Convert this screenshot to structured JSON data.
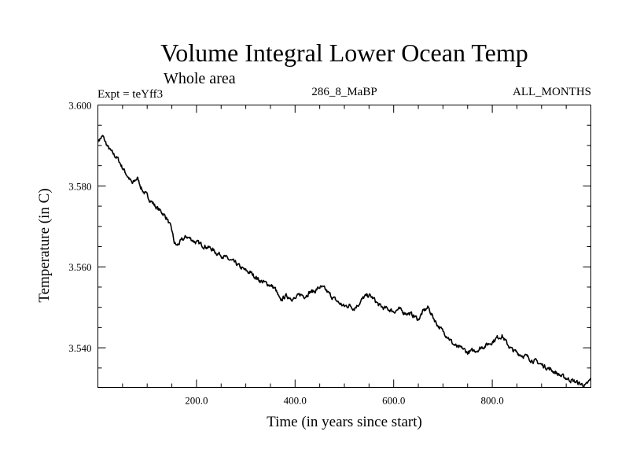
{
  "chart_data": {
    "type": "line",
    "title": "Volume Integral Lower Ocean Temp",
    "subtitle": "Whole area",
    "experiment_label": "Expt = teYff3",
    "run_label": "286_8_MaBP",
    "months_label": "ALL_MONTHS",
    "xlabel": "Time (in years since start)",
    "ylabel": "Temperature (in C)",
    "xlim": [
      0,
      1000
    ],
    "ylim": [
      3.5302,
      3.6
    ],
    "xticks": [
      200,
      400,
      600,
      800
    ],
    "xtick_labels": [
      "200.0",
      "400.0",
      "600.0",
      "800.0"
    ],
    "yticks": [
      3.54,
      3.56,
      3.58,
      3.6
    ],
    "ytick_labels": [
      "3.540",
      "3.560",
      "3.580",
      "3.600"
    ],
    "series": [
      {
        "name": "teYff3",
        "color": "#000000",
        "x": [
          0,
          10,
          20,
          30,
          40,
          50,
          60,
          70,
          80,
          90,
          100,
          110,
          120,
          130,
          140,
          150,
          155,
          160,
          170,
          180,
          190,
          200,
          210,
          220,
          230,
          240,
          250,
          260,
          270,
          280,
          290,
          300,
          310,
          320,
          330,
          340,
          350,
          360,
          370,
          380,
          390,
          400,
          410,
          420,
          430,
          440,
          450,
          460,
          470,
          480,
          490,
          500,
          510,
          520,
          530,
          540,
          550,
          560,
          570,
          580,
          590,
          600,
          610,
          620,
          630,
          640,
          650,
          660,
          670,
          680,
          690,
          700,
          710,
          720,
          730,
          740,
          750,
          760,
          770,
          780,
          790,
          800,
          810,
          820,
          830,
          840,
          850,
          860,
          870,
          880,
          890,
          900,
          910,
          920,
          930,
          940,
          950,
          960,
          970,
          980,
          990,
          1000
        ],
        "values": [
          3.5912,
          3.5922,
          3.5896,
          3.588,
          3.5868,
          3.5845,
          3.5825,
          3.5805,
          3.582,
          3.579,
          3.5775,
          3.576,
          3.5745,
          3.5735,
          3.572,
          3.569,
          3.566,
          3.5652,
          3.5665,
          3.5675,
          3.5668,
          3.566,
          3.5655,
          3.565,
          3.5645,
          3.5635,
          3.563,
          3.5622,
          3.5615,
          3.5608,
          3.5598,
          3.559,
          3.5585,
          3.5575,
          3.5565,
          3.556,
          3.5555,
          3.5545,
          3.5515,
          3.5528,
          3.5525,
          3.552,
          3.5532,
          3.5528,
          3.5538,
          3.554,
          3.555,
          3.5545,
          3.5532,
          3.552,
          3.551,
          3.5502,
          3.5505,
          3.5498,
          3.551,
          3.5525,
          3.553,
          3.552,
          3.5505,
          3.5498,
          3.5495,
          3.549,
          3.5495,
          3.5488,
          3.5485,
          3.548,
          3.547,
          3.549,
          3.55,
          3.5475,
          3.5455,
          3.544,
          3.5428,
          3.541,
          3.54,
          3.5398,
          3.5388,
          3.5392,
          3.5395,
          3.5402,
          3.5408,
          3.5415,
          3.5425,
          3.543,
          3.541,
          3.5395,
          3.5388,
          3.5382,
          3.5378,
          3.537,
          3.5365,
          3.5358,
          3.5352,
          3.5345,
          3.5338,
          3.533,
          3.5325,
          3.532,
          3.5315,
          3.531,
          3.5306,
          3.5322
        ]
      }
    ]
  }
}
